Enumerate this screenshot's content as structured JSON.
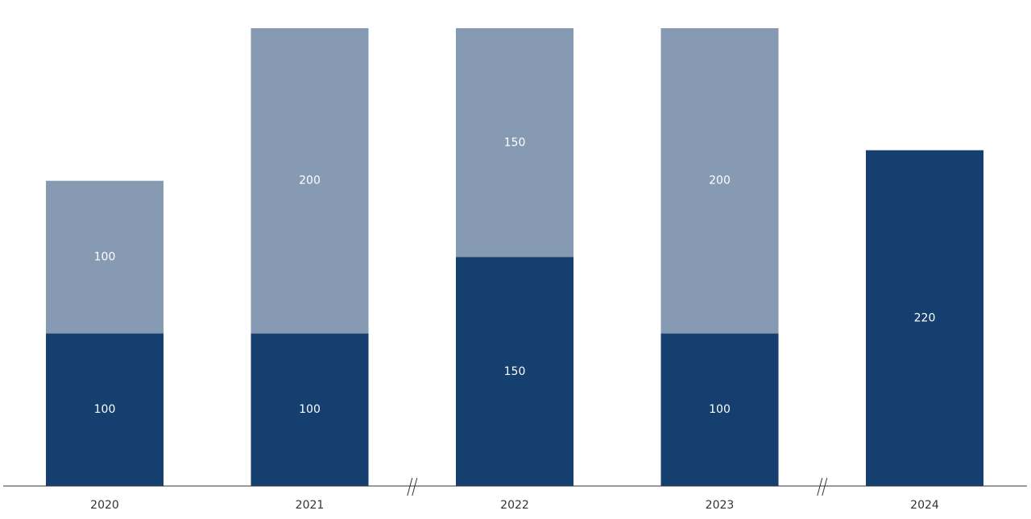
{
  "chart_data": {
    "type": "bar",
    "stacked": true,
    "title": "",
    "xlabel": "",
    "ylabel": "",
    "categories": [
      "2020",
      "2021",
      "2022",
      "2023",
      "2024"
    ],
    "series": [
      {
        "values": [
          100,
          100,
          150,
          100,
          220
        ],
        "color": "#143f6e"
      },
      {
        "values": [
          100,
          200,
          150,
          200,
          null
        ],
        "color": "#869bb3"
      }
    ],
    "ylim": [
      0,
      300
    ],
    "grid": false,
    "axis_breaks_after": [
      "2021",
      "2023"
    ]
  }
}
